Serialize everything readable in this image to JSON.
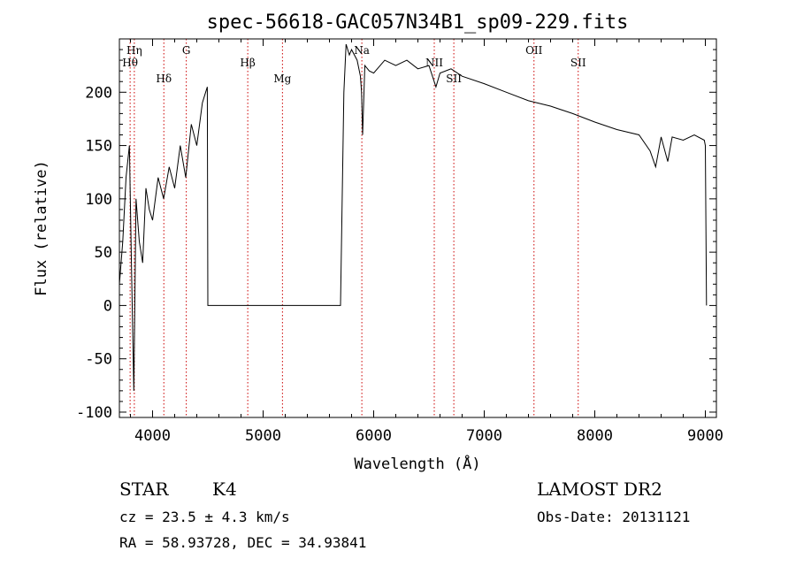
{
  "chart_data": {
    "type": "line",
    "title": "spec-56618-GAC057N34B1_sp09-229.fits",
    "xlabel": "Wavelength (Å)",
    "ylabel": "Flux (relative)",
    "xlim": [
      3700,
      9100
    ],
    "ylim": [
      -105,
      250
    ],
    "xticks": [
      4000,
      5000,
      6000,
      7000,
      8000,
      9000
    ],
    "yticks": [
      -100,
      -50,
      0,
      50,
      100,
      150,
      200
    ],
    "grid": false,
    "colors": {
      "spectrum": "#000000",
      "line_marker": "#cc0000"
    },
    "spectrum": {
      "x": [
        3700,
        3730,
        3760,
        3790,
        3810,
        3830,
        3850,
        3880,
        3910,
        3940,
        3970,
        4000,
        4050,
        4100,
        4150,
        4200,
        4250,
        4300,
        4350,
        4400,
        4450,
        4480,
        4495,
        4500,
        4600,
        5000,
        5500,
        5700,
        5730,
        5750,
        5780,
        5800,
        5850,
        5880,
        5890,
        5900,
        5920,
        5960,
        6000,
        6100,
        6200,
        6300,
        6400,
        6500,
        6563,
        6600,
        6700,
        6800,
        7000,
        7200,
        7400,
        7600,
        7800,
        8000,
        8200,
        8400,
        8500,
        8550,
        8600,
        8660,
        8700,
        8800,
        8900,
        8990,
        9000,
        9010
      ],
      "y": [
        20,
        60,
        120,
        150,
        30,
        -80,
        100,
        60,
        40,
        110,
        90,
        80,
        120,
        100,
        130,
        110,
        150,
        120,
        170,
        150,
        190,
        200,
        205,
        0,
        0,
        0,
        0,
        0,
        200,
        245,
        235,
        240,
        230,
        215,
        200,
        160,
        225,
        220,
        218,
        230,
        225,
        230,
        222,
        225,
        205,
        218,
        222,
        215,
        208,
        200,
        192,
        187,
        180,
        172,
        165,
        160,
        145,
        130,
        158,
        135,
        158,
        155,
        160,
        155,
        150,
        0
      ]
    },
    "lines": [
      {
        "label": "Hη",
        "x": 3835
      },
      {
        "label": "Hθ",
        "x": 3797
      },
      {
        "label": "Hδ",
        "x": 4102
      },
      {
        "label": "G",
        "x": 4305
      },
      {
        "label": "Hβ",
        "x": 4861
      },
      {
        "label": "Mg",
        "x": 5175
      },
      {
        "label": "Na",
        "x": 5893
      },
      {
        "label": "NII",
        "x": 6548
      },
      {
        "label": "SII",
        "x": 6725
      },
      {
        "label": "OII",
        "x": 7450
      },
      {
        "label": "SII",
        "x": 7850
      }
    ]
  },
  "info": {
    "class_label": "STAR",
    "subclass": "K4",
    "cz": "cz = 23.5 ± 4.3 km/s",
    "radec": "RA =  58.93728, DEC =  34.93841",
    "survey": "LAMOST DR2",
    "obs_date": "Obs-Date: 20131121"
  }
}
